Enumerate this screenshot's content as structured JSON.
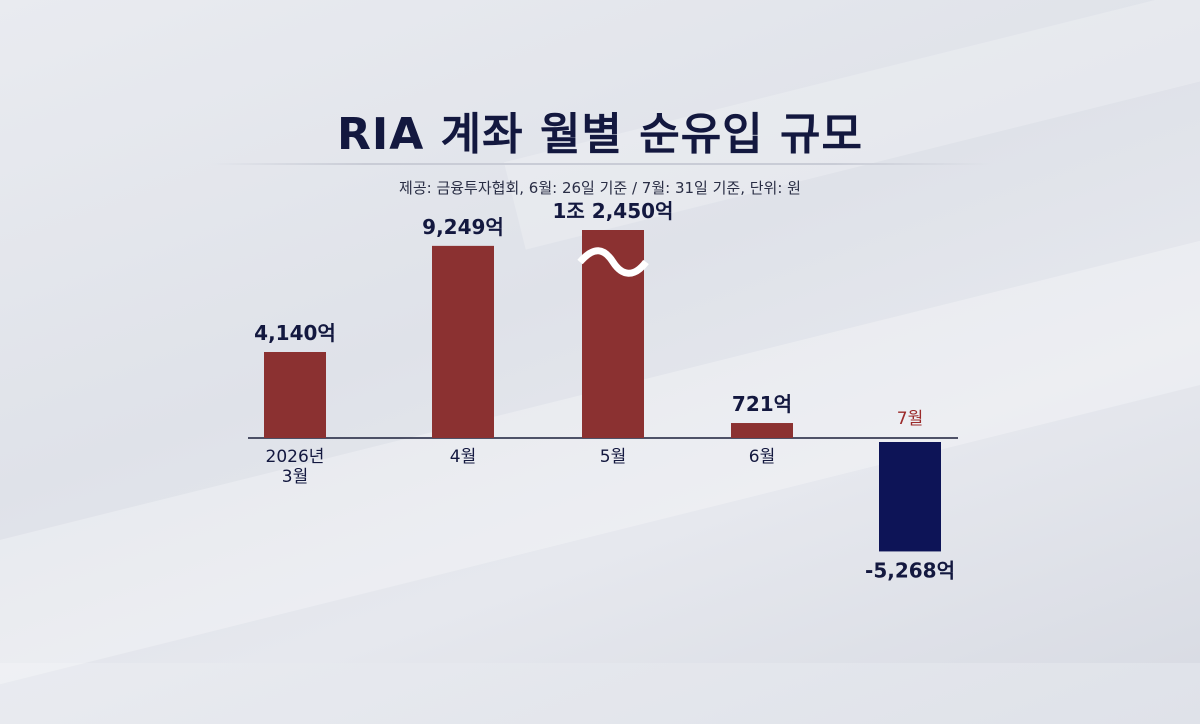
{
  "title": "RIA 계좌 월별 순유입 규모",
  "subtitle": "제공: 금융투자협회, 6월: 26일 기준 / 7월: 31일 기준, 단위: 원",
  "colors": {
    "positive": "#8b3131",
    "negative": "#0d1457",
    "label_dark": "#13183f",
    "label_red": "#9b2a2a",
    "axis": "#1b1f3a"
  },
  "chart_data": {
    "type": "bar",
    "categories": [
      "2026년\n3월",
      "4월",
      "5월",
      "6월",
      "7월"
    ],
    "values": [
      4140,
      9249,
      12450,
      721,
      -5268
    ],
    "value_labels": [
      "4,140억",
      "9,249억",
      "1조 2,450억",
      "721억",
      "-5,268억"
    ],
    "unit": "억 원",
    "axis_break": "5월",
    "ylim": [
      -5500,
      12500
    ],
    "grid": false,
    "legend": "none"
  }
}
